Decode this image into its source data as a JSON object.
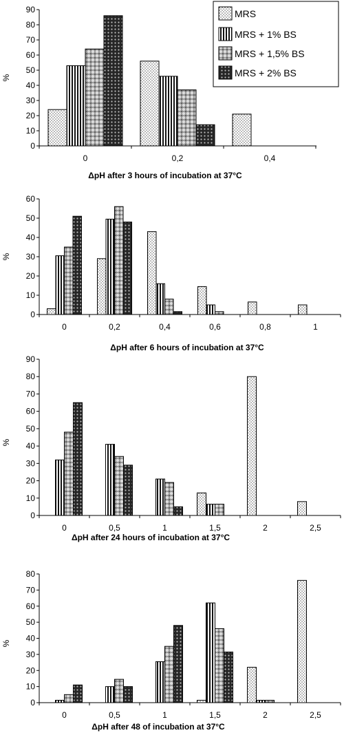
{
  "legend": {
    "position": "top-right",
    "entries": [
      "MRS",
      "MRS + 1% BS",
      "MRS + 1,5% BS",
      "MRS + 2% BS"
    ]
  },
  "chart_data": [
    {
      "type": "bar",
      "xlabel": "ΔpH after 3 hours of incubation at 37°C",
      "ylabel": "%",
      "ylim": [
        0,
        90
      ],
      "yticks": [
        0,
        10,
        20,
        30,
        40,
        50,
        60,
        70,
        80,
        90
      ],
      "categories": [
        "0",
        "0,2",
        "0,4"
      ],
      "series": [
        {
          "name": "MRS",
          "values": [
            24,
            56,
            21
          ]
        },
        {
          "name": "MRS + 1% BS",
          "values": [
            53,
            46,
            0
          ]
        },
        {
          "name": "MRS + 1,5% BS",
          "values": [
            64,
            37,
            0
          ]
        },
        {
          "name": "MRS + 2% BS",
          "values": [
            86,
            14,
            0
          ]
        }
      ]
    },
    {
      "type": "bar",
      "xlabel": "ΔpH after 6 hours of incubation at 37°C",
      "ylabel": "%",
      "ylim": [
        0,
        60
      ],
      "yticks": [
        0,
        10,
        20,
        30,
        40,
        50,
        60
      ],
      "categories": [
        "0",
        "0,2",
        "0,4",
        "0,6",
        "0,8",
        "1"
      ],
      "series": [
        {
          "name": "MRS",
          "values": [
            3,
            29,
            43,
            14.5,
            6.5,
            5
          ]
        },
        {
          "name": "MRS + 1% BS",
          "values": [
            30.5,
            49.5,
            16,
            5,
            0,
            0
          ]
        },
        {
          "name": "MRS + 1,5% BS",
          "values": [
            35,
            56,
            8,
            1.5,
            0,
            0
          ]
        },
        {
          "name": "MRS + 2% BS",
          "values": [
            51,
            48,
            1.5,
            0,
            0,
            0
          ]
        }
      ]
    },
    {
      "type": "bar",
      "xlabel": "ΔpH after 24 hours of incubation at 37°C",
      "ylabel": "%",
      "ylim": [
        0,
        90
      ],
      "yticks": [
        0,
        10,
        20,
        30,
        40,
        50,
        60,
        70,
        80,
        90
      ],
      "categories": [
        "0",
        "0,5",
        "1",
        "1,5",
        "2",
        "2,5"
      ],
      "series": [
        {
          "name": "MRS",
          "values": [
            0,
            0,
            0,
            13,
            80,
            8
          ]
        },
        {
          "name": "MRS + 1% BS",
          "values": [
            32,
            41,
            21,
            6.5,
            0,
            0
          ]
        },
        {
          "name": "MRS + 1,5% BS",
          "values": [
            48,
            34,
            19,
            6.5,
            0,
            0
          ]
        },
        {
          "name": "MRS + 2% BS",
          "values": [
            65,
            29,
            5,
            0,
            0,
            0
          ]
        }
      ]
    },
    {
      "type": "bar",
      "xlabel": "ΔpH after 48 of incubation at 37°C",
      "ylabel": "%",
      "ylim": [
        0,
        80
      ],
      "yticks": [
        0,
        10,
        20,
        30,
        40,
        50,
        60,
        70,
        80
      ],
      "categories": [
        "0",
        "0,5",
        "1",
        "1,5",
        "2",
        "2,5"
      ],
      "series": [
        {
          "name": "MRS",
          "values": [
            0,
            0,
            0,
            1.5,
            22,
            76
          ]
        },
        {
          "name": "MRS + 1% BS",
          "values": [
            1.5,
            10,
            25.5,
            62,
            1.5,
            0
          ]
        },
        {
          "name": "MRS + 1,5% BS",
          "values": [
            5,
            14.5,
            35,
            46,
            1.5,
            0
          ]
        },
        {
          "name": "MRS + 2% BS",
          "values": [
            11,
            10,
            48,
            31.5,
            0,
            0
          ]
        }
      ]
    }
  ]
}
